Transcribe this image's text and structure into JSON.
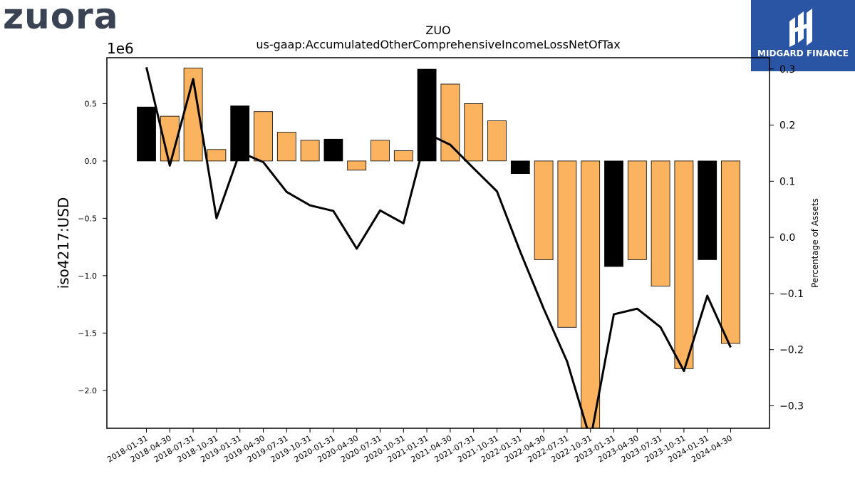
{
  "logos": {
    "company": "zuora",
    "brand": "MIDGARD FINANCE"
  },
  "chart_data": {
    "type": "bar",
    "title": "ZUO",
    "subtitle": "us-gaap:AccumulatedOtherComprehensiveIncomeLossNetOfTax",
    "ylabel": "iso4217:USD",
    "y_offset_label": "1e6",
    "y2label": "Percentage of Assets",
    "categories": [
      "2018-01-31",
      "2018-04-30",
      "2018-07-31",
      "2018-10-31",
      "2019-01-31",
      "2019-04-30",
      "2019-07-31",
      "2019-10-31",
      "2020-01-31",
      "2020-04-30",
      "2020-07-31",
      "2020-10-31",
      "2021-01-31",
      "2021-04-30",
      "2021-07-31",
      "2021-10-31",
      "2022-01-31",
      "2022-04-30",
      "2022-07-31",
      "2022-10-31",
      "2023-01-31",
      "2023-04-30",
      "2023-07-31",
      "2023-10-31",
      "2024-01-31",
      "2024-04-30"
    ],
    "series": [
      {
        "type": "bar",
        "axis": "left",
        "values": [
          0.47,
          0.39,
          0.81,
          0.1,
          0.48,
          0.43,
          0.25,
          0.18,
          0.19,
          -0.08,
          0.18,
          0.09,
          0.8,
          0.67,
          0.5,
          0.35,
          -0.11,
          -0.86,
          -1.45,
          -2.4,
          -0.92,
          -0.86,
          -1.09,
          -1.81,
          -0.86,
          -1.59
        ],
        "colors": [
          "#000000",
          "#fbb360",
          "#fbb360",
          "#fbb360",
          "#000000",
          "#fbb360",
          "#fbb360",
          "#fbb360",
          "#000000",
          "#fbb360",
          "#fbb360",
          "#fbb360",
          "#000000",
          "#fbb360",
          "#fbb360",
          "#fbb360",
          "#000000",
          "#fbb360",
          "#fbb360",
          "#fbb360",
          "#000000",
          "#fbb360",
          "#fbb360",
          "#fbb360",
          "#000000",
          "#fbb360"
        ]
      },
      {
        "type": "line",
        "axis": "right",
        "color": "#000000",
        "values": [
          0.303,
          0.128,
          0.282,
          0.034,
          0.152,
          0.134,
          0.081,
          0.057,
          0.047,
          -0.02,
          0.048,
          0.025,
          0.185,
          0.165,
          0.123,
          0.082,
          -0.026,
          -0.127,
          -0.221,
          -0.36,
          -0.137,
          -0.127,
          -0.16,
          -0.238,
          -0.104,
          -0.196
        ]
      }
    ],
    "ylim": [
      -2.33,
      0.9
    ],
    "y2lim": [
      -0.34,
      0.32
    ],
    "yticks": [
      -2.0,
      -1.5,
      -1.0,
      -0.5,
      0.0,
      0.5
    ],
    "ytick_labels": [
      "−2.0",
      "−1.5",
      "−1.0",
      "−0.5",
      "0.0",
      "0.5"
    ],
    "y2ticks": [
      -0.3,
      -0.2,
      -0.1,
      0.0,
      0.1,
      0.2,
      0.3
    ],
    "y2tick_labels": [
      "−0.3",
      "−0.2",
      "−0.1",
      "0.0",
      "0.1",
      "0.2",
      "0.3"
    ],
    "grid": false
  }
}
